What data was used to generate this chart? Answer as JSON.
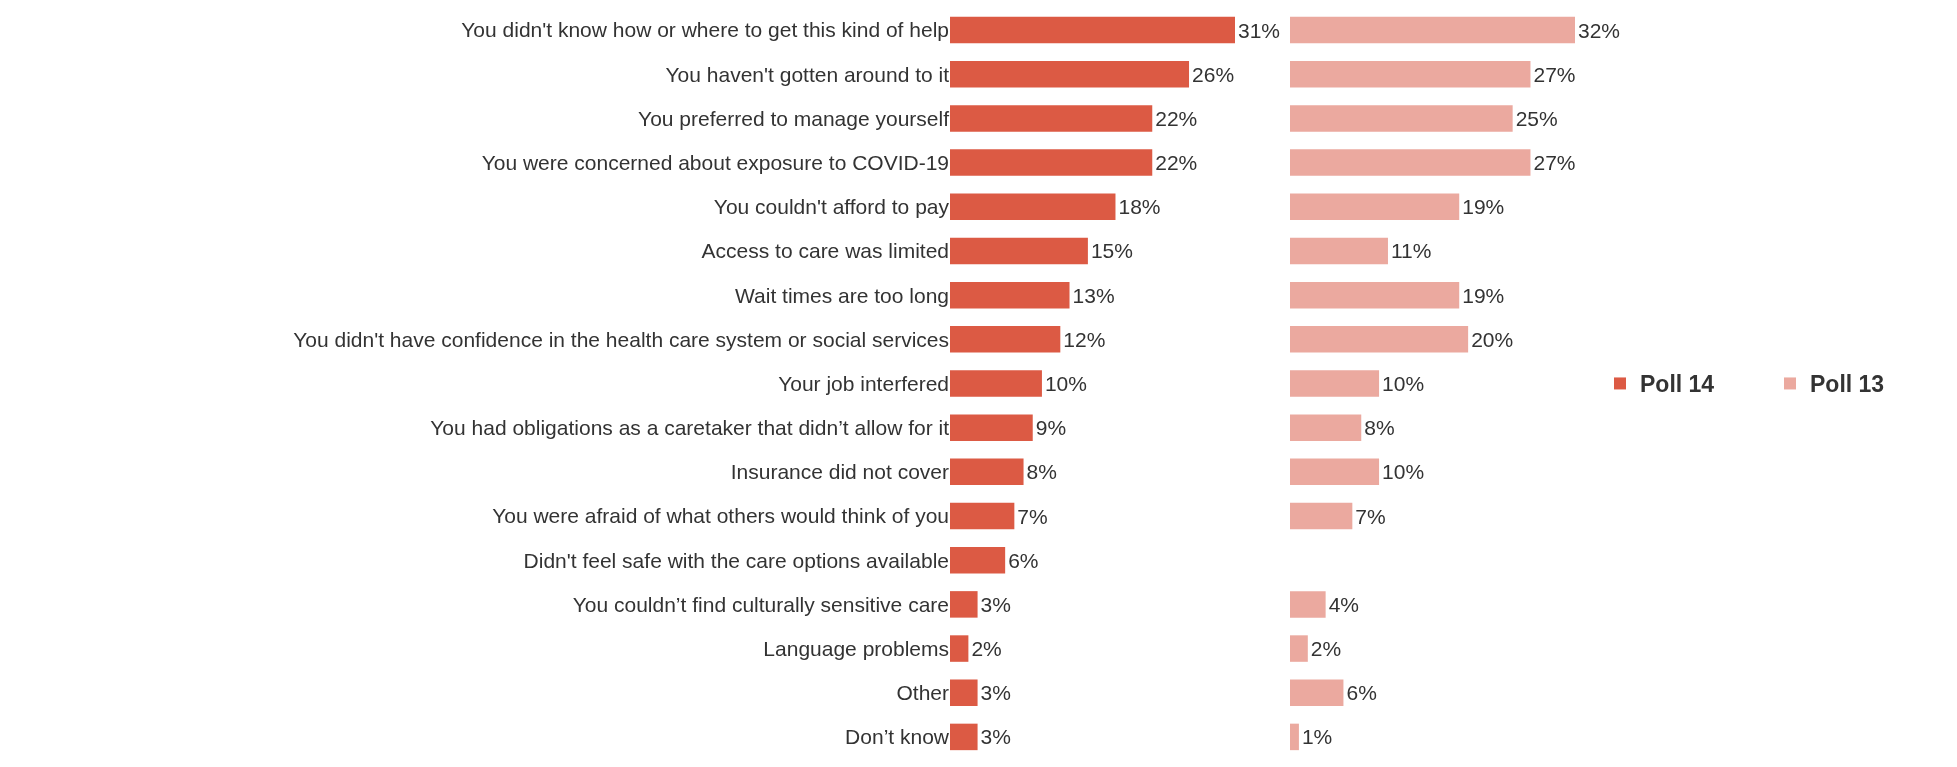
{
  "chart_data": [
    {
      "type": "bar",
      "orientation": "horizontal",
      "legend": "right",
      "categories": [
        "You didn't know how or where to get this kind of help",
        "You haven't gotten around to it",
        "You preferred to manage yourself",
        "You were concerned about exposure to COVID-19",
        "You couldn't afford to pay",
        "Access to care was limited",
        "Wait times are too long",
        "You didn't have confidence in the health care system or social services",
        "Your job interfered",
        "You had obligations as a caretaker that didn’t allow for it",
        "Insurance did not cover",
        "You were afraid of what others would think of you",
        "Didn't feel safe with the care options available",
        "You couldn’t find culturally sensitive care",
        "Language problems",
        "Other",
        "Don’t know"
      ],
      "series": [
        {
          "name": "Poll 14",
          "color": "#dc5a44",
          "values": [
            31,
            26,
            22,
            22,
            18,
            15,
            13,
            12,
            10,
            9,
            8,
            7,
            6,
            3,
            2,
            3,
            3
          ],
          "value_labels": [
            "31%",
            "26%",
            "22%",
            "22%",
            "18%",
            "15%",
            "13%",
            "12%",
            "10%",
            "9%",
            "8%",
            "7%",
            "6%",
            "3%",
            "2%",
            "3%",
            "3%"
          ]
        }
      ]
    },
    {
      "type": "bar",
      "orientation": "horizontal",
      "legend": "right",
      "categories": [
        null,
        null,
        null,
        null,
        null,
        null,
        null,
        null,
        null,
        null,
        null,
        null,
        null,
        null,
        null,
        null,
        null
      ],
      "series": [
        {
          "name": "Poll 13",
          "color": "#eba99f",
          "values": [
            32,
            27,
            25,
            27,
            19,
            11,
            19,
            20,
            10,
            8,
            10,
            7,
            null,
            4,
            2,
            6,
            1
          ],
          "value_labels": [
            "32%",
            "27%",
            "25%",
            "27%",
            "19%",
            "11%",
            "19%",
            "20%",
            "10%",
            "8%",
            "10%",
            "7%",
            null,
            "4%",
            "2%",
            "6%",
            "1%"
          ]
        }
      ]
    }
  ]
}
